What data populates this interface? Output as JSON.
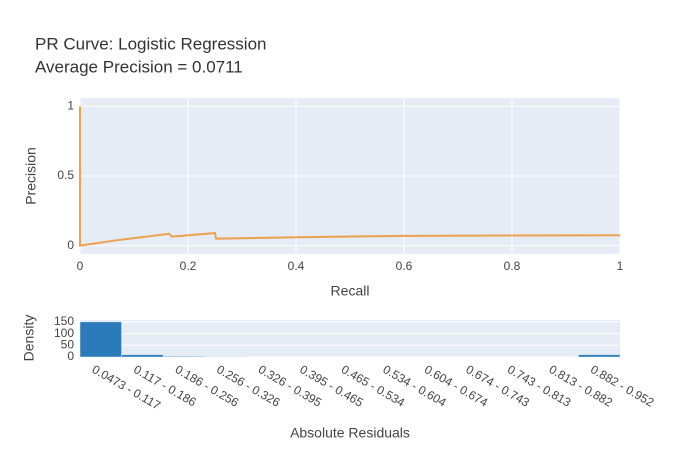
{
  "chart_data": [
    {
      "type": "line",
      "title": "PR Curve: Logistic Regression",
      "subtitle": "Average Precision = 0.0711",
      "x_label": "Recall",
      "y_label": "Precision",
      "series": [
        {
          "color": "#eda14f",
          "x": [
            0,
            0,
            0.07,
            0.165,
            0.17,
            0.25,
            0.252,
            0.4,
            0.6,
            1
          ],
          "values": [
            1,
            0,
            0.04,
            0.085,
            0.065,
            0.09,
            0.05,
            0.06,
            0.07,
            0.075
          ]
        }
      ],
      "xlim": [
        0,
        1
      ],
      "xticks": [
        0,
        0.2,
        0.4,
        0.6,
        0.8,
        1
      ],
      "ylim": [
        -0.06,
        1.06
      ],
      "yticks": [
        0,
        0.5,
        1
      ],
      "grid": true
    },
    {
      "type": "bar",
      "x_label": "Absolute Residuals",
      "y_label": "Density",
      "categories": [
        "0.0473 - 0.117",
        "0.117 - 0.186",
        "0.186 - 0.256",
        "0.256 - 0.326",
        "0.326 - 0.395",
        "0.395 - 0.465",
        "0.465 - 0.534",
        "0.534 - 0.604",
        "0.604 - 0.674",
        "0.674 - 0.743",
        "0.743 - 0.813",
        "0.813 - 0.882",
        "0.882 - 0.952"
      ],
      "values": [
        150,
        10,
        3,
        1,
        0,
        0,
        0,
        0,
        0,
        0,
        0,
        0,
        10
      ],
      "color": "#2b7bba",
      "ylim": [
        0,
        158
      ],
      "yticks": [
        0,
        50,
        100,
        150
      ],
      "grid": true
    }
  ]
}
